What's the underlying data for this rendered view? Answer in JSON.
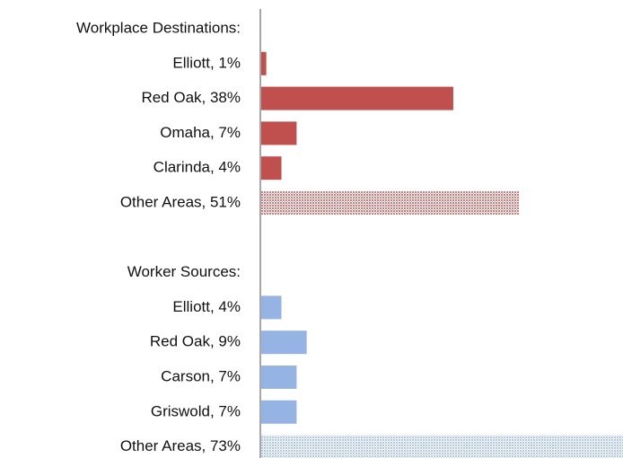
{
  "chart_data": {
    "type": "bar",
    "orientation": "horizontal",
    "categories": [
      "Workplace Destinations:",
      "Elliott, 1%",
      "Red Oak, 38%",
      "Omaha, 7%",
      "Clarinda, 4%",
      "Other Areas, 51%",
      null,
      "Worker Sources:",
      "Elliott, 4%",
      "Red Oak, 9%",
      "Carson, 7%",
      "Griswold, 7%",
      "Other Areas, 73%"
    ],
    "values": [
      null,
      1,
      38,
      7,
      4,
      51,
      null,
      null,
      4,
      9,
      7,
      7,
      73
    ],
    "colors": [
      null,
      "#c0504d",
      "#c0504d",
      "#c0504d",
      "#c0504d",
      "#c0504d",
      null,
      null,
      "#95b3e3",
      "#95b3e3",
      "#95b3e3",
      "#95b3e3",
      "#95b3e3"
    ],
    "patterns": [
      null,
      "solid",
      "solid",
      "solid",
      "solid",
      "hatched",
      null,
      null,
      "solid",
      "solid",
      "solid",
      "solid",
      "hatched"
    ]
  }
}
